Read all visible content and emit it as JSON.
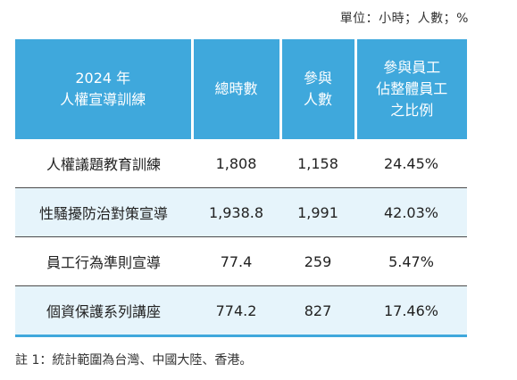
{
  "unit_note": "單位：小時；人數；%",
  "header": {
    "col1": [
      "2024 年",
      "人權宣導訓練"
    ],
    "col2": [
      "總時數"
    ],
    "col3": [
      "參與",
      "人數"
    ],
    "col4": [
      "參與員工",
      "佔整體員工",
      "之比例"
    ]
  },
  "rows": [
    {
      "name": "人權議題教育訓練",
      "hours": "1,808",
      "people": "1,158",
      "ratio": "24.45%"
    },
    {
      "name": "性騷擾防治對策宣導",
      "hours": "1,938.8",
      "people": "1,991",
      "ratio": "42.03%"
    },
    {
      "name": "員工行為準則宣導",
      "hours": "77.4",
      "people": "259",
      "ratio": "5.47%"
    },
    {
      "name": "個資保護系列講座",
      "hours": "774.2",
      "people": "827",
      "ratio": "17.46%"
    }
  ],
  "colors": {
    "header_bg": "#3fa8dc",
    "alt_row_bg": "#e6f4fb"
  },
  "footnote": "註 1：統計範圍為台灣、中國大陸、香港。"
}
